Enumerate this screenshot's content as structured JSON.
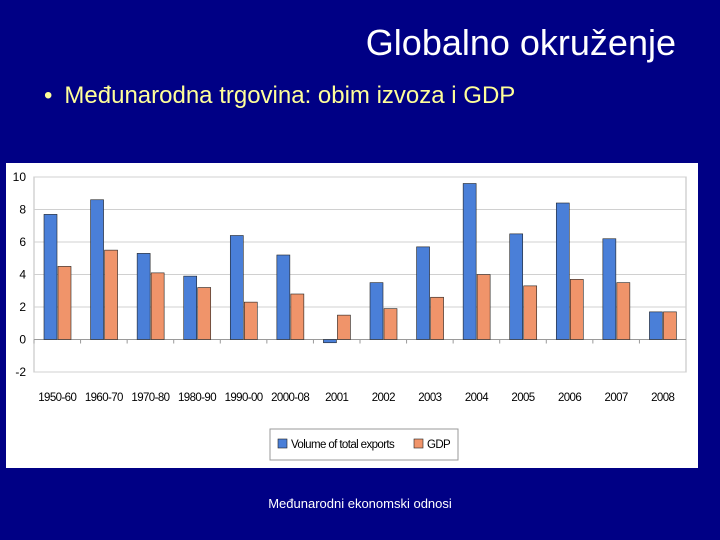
{
  "slide": {
    "title": "Globalno okruženje",
    "bullet": "Međunarodna trgovina: obim izvoza i GDP",
    "footer": "Međunarodni ekonomski odnosi"
  },
  "colors": {
    "background": "#000085",
    "title": "#ffffff",
    "bullet": "#ffff99",
    "exports": "#4a7fd8",
    "gdp": "#f0946a"
  },
  "chart_data": {
    "type": "bar",
    "categories": [
      "1950-60",
      "1960-70",
      "1970-80",
      "1980-90",
      "1990-00",
      "2000-08",
      "2001",
      "2002",
      "2003",
      "2004",
      "2005",
      "2006",
      "2007",
      "2008"
    ],
    "series": [
      {
        "name": "Volume of total exports",
        "values": [
          7.7,
          8.6,
          5.3,
          3.9,
          6.4,
          5.2,
          -0.2,
          3.5,
          5.7,
          9.6,
          6.5,
          8.4,
          6.2,
          1.7
        ]
      },
      {
        "name": "GDP",
        "values": [
          4.5,
          5.5,
          4.1,
          3.2,
          2.3,
          2.8,
          1.5,
          1.9,
          2.6,
          4.0,
          3.3,
          3.7,
          3.5,
          1.7
        ]
      }
    ],
    "ylim": [
      -2,
      10
    ],
    "yticks": [
      "-2",
      "0",
      "2",
      "4",
      "6",
      "8",
      "10"
    ],
    "grid": true,
    "legend": "bottom-center"
  }
}
